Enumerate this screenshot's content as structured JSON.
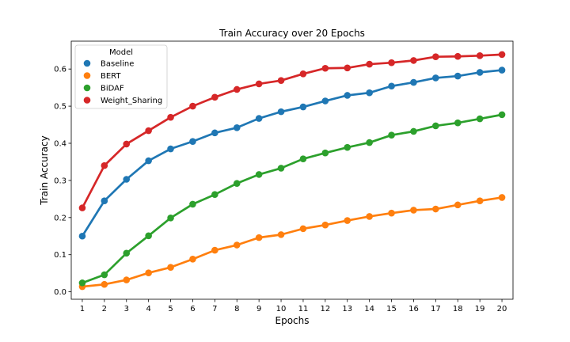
{
  "chart_data": {
    "type": "line",
    "title": "Train Accuracy over 20 Epochs",
    "xlabel": "Epochs",
    "ylabel": "Train Accuracy",
    "categories": [
      "1",
      "2",
      "3",
      "4",
      "5",
      "6",
      "7",
      "8",
      "9",
      "10",
      "11",
      "12",
      "13",
      "14",
      "15",
      "16",
      "17",
      "18",
      "19",
      "20"
    ],
    "ylim": [
      -0.02,
      0.675
    ],
    "yticks": [
      0.0,
      0.1,
      0.2,
      0.3,
      0.4,
      0.5,
      0.6
    ],
    "ytick_labels": [
      "0.0",
      "0.1",
      "0.2",
      "0.3",
      "0.4",
      "0.5",
      "0.6"
    ],
    "grid": false,
    "legend": {
      "title": "Model",
      "placement": "top-left"
    },
    "series": [
      {
        "name": "Baseline",
        "color": "#1f77b4",
        "values": [
          0.15,
          0.245,
          0.303,
          0.353,
          0.385,
          0.405,
          0.428,
          0.442,
          0.467,
          0.485,
          0.498,
          0.514,
          0.529,
          0.536,
          0.554,
          0.564,
          0.576,
          0.581,
          0.591,
          0.597
        ]
      },
      {
        "name": "BERT",
        "color": "#ff7f0e",
        "values": [
          0.014,
          0.02,
          0.032,
          0.051,
          0.066,
          0.088,
          0.112,
          0.126,
          0.146,
          0.154,
          0.17,
          0.18,
          0.192,
          0.203,
          0.212,
          0.22,
          0.223,
          0.234,
          0.245,
          0.254
        ]
      },
      {
        "name": "BiDAF",
        "color": "#2ca02c",
        "values": [
          0.024,
          0.046,
          0.104,
          0.151,
          0.199,
          0.236,
          0.262,
          0.292,
          0.316,
          0.333,
          0.358,
          0.374,
          0.389,
          0.402,
          0.422,
          0.432,
          0.447,
          0.455,
          0.466,
          0.477
        ]
      },
      {
        "name": "Weight_Sharing",
        "color": "#d62728",
        "values": [
          0.226,
          0.34,
          0.398,
          0.434,
          0.47,
          0.5,
          0.524,
          0.545,
          0.56,
          0.569,
          0.587,
          0.602,
          0.603,
          0.613,
          0.617,
          0.623,
          0.633,
          0.634,
          0.636,
          0.639
        ]
      }
    ]
  }
}
